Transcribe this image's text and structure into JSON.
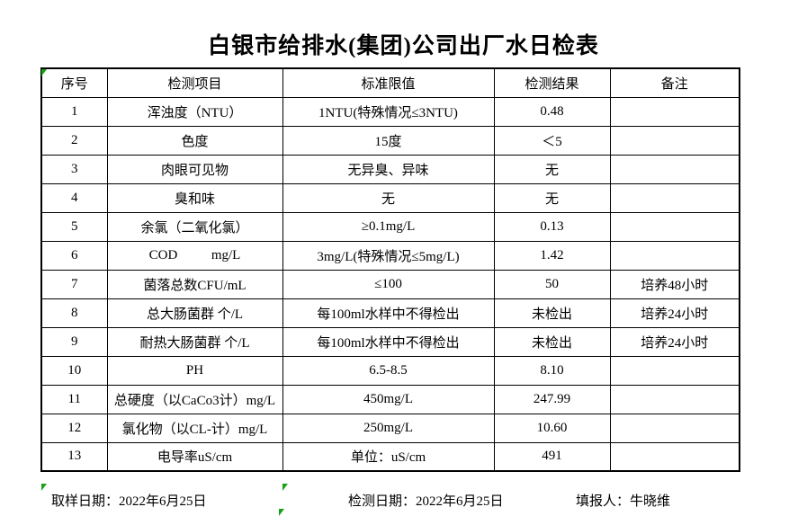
{
  "title": "白银市给排水(集团)公司出厂水日检表",
  "colors": {
    "text": "#000000",
    "table_border": "#000000",
    "error_indicator_green": "#18a018",
    "background": "#ffffff"
  },
  "table": {
    "headers": [
      "序号",
      "检测项目",
      "标准限值",
      "检测结果",
      "备注"
    ],
    "rows": [
      {
        "no": "1",
        "item": "浑浊度（NTU）",
        "limit": "1NTU(特殊情况≤3NTU)",
        "result": "0.48",
        "remark": ""
      },
      {
        "no": "2",
        "item": "色度",
        "limit": "15度",
        "result": "＜5",
        "remark": ""
      },
      {
        "no": "3",
        "item": "肉眼可见物",
        "limit": "无异臭、异味",
        "result": "无",
        "remark": ""
      },
      {
        "no": "4",
        "item": "臭和味",
        "limit": "无",
        "result": "无",
        "remark": ""
      },
      {
        "no": "5",
        "item": "余氯（二氧化氯）",
        "limit": "≥0.1mg/L",
        "result": "0.13",
        "remark": ""
      },
      {
        "no": "6",
        "item": "COD          mg/L",
        "limit": "3mg/L(特殊情况≤5mg/L)",
        "result": "1.42",
        "remark": ""
      },
      {
        "no": "7",
        "item": "菌落总数CFU/mL",
        "limit": "≤100",
        "result": "50",
        "remark": "培养48小时"
      },
      {
        "no": "8",
        "item": "总大肠菌群 个/L",
        "limit": "每100ml水样中不得检出",
        "result": "未检出",
        "remark": "培养24小时"
      },
      {
        "no": "9",
        "item": "耐热大肠菌群 个/L",
        "limit": "每100ml水样中不得检出",
        "result": "未检出",
        "remark": "培养24小时"
      },
      {
        "no": "10",
        "item": "PH",
        "limit": "6.5-8.5",
        "result": "8.10",
        "remark": ""
      },
      {
        "no": "11",
        "item": "总硬度（以CaCo3计）mg/L",
        "limit": "450mg/L",
        "result": "247.99",
        "remark": ""
      },
      {
        "no": "12",
        "item": "氯化物（以CL-计）mg/L",
        "limit": "250mg/L",
        "result": "10.60",
        "remark": ""
      },
      {
        "no": "13",
        "item": "电导率uS/cm",
        "limit": "单位：uS/cm",
        "result": "491",
        "remark": ""
      }
    ]
  },
  "footer": {
    "sampling_date": "取样日期：2022年6月25日",
    "test_date": "检测日期：2022年6月25日",
    "reporter": "填报人：牛晓维"
  },
  "icons": {
    "error_indicator": "excel-green-corner-triangle"
  }
}
